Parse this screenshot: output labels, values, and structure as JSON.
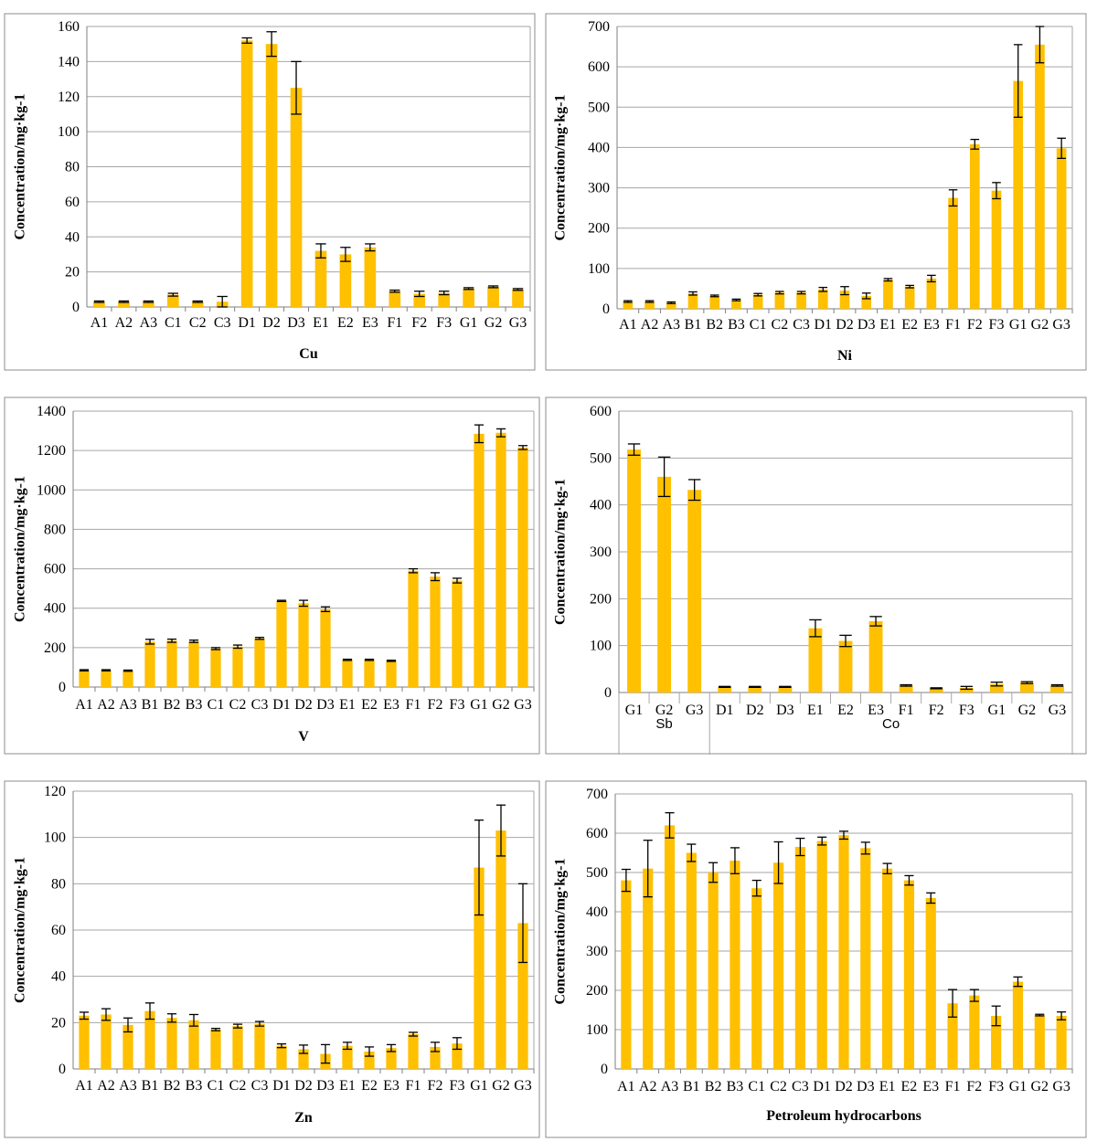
{
  "colors": {
    "bar": "#ffc000",
    "grid": "#a6a6a6",
    "axis": "#7f7f7f",
    "error": "#000000",
    "frame": "#8c8c8c"
  },
  "chart_data": [
    {
      "id": "cu",
      "type": "bar",
      "title": "Cu",
      "xlabel": "Cu",
      "ylabel": "Concentration/mg·kg-1",
      "ylim": [
        0,
        160
      ],
      "yticks": [
        0,
        20,
        40,
        60,
        80,
        100,
        120,
        140,
        160
      ],
      "categories": [
        "A1",
        "A2",
        "A3",
        "C1",
        "C2",
        "C3",
        "D1",
        "D2",
        "D3",
        "E1",
        "E2",
        "E3",
        "F1",
        "F2",
        "F3",
        "G1",
        "G2",
        "G3"
      ],
      "values": [
        3,
        3,
        3,
        7,
        3,
        3,
        152,
        150,
        125,
        32,
        30,
        34,
        9,
        7.5,
        8,
        10.5,
        11.5,
        10
      ],
      "errors": [
        0.4,
        0.4,
        0.4,
        0.8,
        0.4,
        3,
        1.5,
        7,
        15,
        4,
        4,
        2,
        0.6,
        1.5,
        1,
        0.5,
        0.5,
        0.5
      ]
    },
    {
      "id": "ni",
      "type": "bar",
      "title": "Ni",
      "xlabel": "Ni",
      "ylabel": "Concentration/mg·kg-1",
      "ylim": [
        0,
        700
      ],
      "yticks": [
        0,
        100,
        200,
        300,
        400,
        500,
        600,
        700
      ],
      "categories": [
        "A1",
        "A2",
        "A3",
        "B1",
        "B2",
        "B3",
        "C1",
        "C2",
        "C3",
        "D1",
        "D2",
        "D3",
        "E1",
        "E2",
        "E3",
        "F1",
        "F2",
        "F3",
        "G1",
        "G2",
        "G3"
      ],
      "values": [
        18,
        18,
        15,
        38,
        32,
        22,
        35,
        40,
        40,
        48,
        45,
        32,
        72,
        55,
        75,
        275,
        408,
        293,
        565,
        655,
        398
      ],
      "errors": [
        2,
        2,
        2,
        4,
        2,
        2,
        3,
        3,
        3,
        5,
        10,
        7,
        3,
        3,
        8,
        20,
        12,
        20,
        90,
        45,
        25
      ]
    },
    {
      "id": "v",
      "type": "bar",
      "title": "V",
      "xlabel": "V",
      "ylabel": "Concentration/mg·kg-1",
      "ylim": [
        0,
        1400
      ],
      "yticks": [
        0,
        200,
        400,
        600,
        800,
        1000,
        1200,
        1400
      ],
      "categories": [
        "A1",
        "A2",
        "A3",
        "B1",
        "B2",
        "B3",
        "C1",
        "C2",
        "C3",
        "D1",
        "D2",
        "D3",
        "E1",
        "E2",
        "E3",
        "F1",
        "F2",
        "F3",
        "G1",
        "G2",
        "G3"
      ],
      "values": [
        85,
        85,
        83,
        230,
        235,
        232,
        195,
        205,
        247,
        437,
        425,
        395,
        138,
        138,
        133,
        590,
        560,
        540,
        1285,
        1290,
        1215
      ],
      "errors": [
        3,
        3,
        3,
        12,
        8,
        6,
        5,
        8,
        5,
        3,
        15,
        12,
        3,
        3,
        3,
        10,
        20,
        12,
        45,
        20,
        10
      ]
    },
    {
      "id": "sbco",
      "type": "bar",
      "title": "Sb / Co",
      "xlabel": "",
      "ylabel": "Concentration/mg·kg-1",
      "ylim": [
        0,
        600
      ],
      "yticks": [
        0,
        100,
        200,
        300,
        400,
        500,
        600
      ],
      "categories": [
        "G1",
        "G2",
        "G3",
        "D1",
        "D2",
        "D3",
        "E1",
        "E2",
        "E3",
        "F1",
        "F2",
        "F3",
        "G1",
        "G2",
        "G3"
      ],
      "groups": [
        {
          "name": "Sb",
          "count": 3
        },
        {
          "name": "Co",
          "count": 12
        }
      ],
      "values": [
        518,
        460,
        432,
        12,
        12,
        12,
        137,
        110,
        152,
        15,
        9,
        10,
        18,
        21,
        15
      ],
      "errors": [
        12,
        42,
        22,
        1,
        1,
        1,
        18,
        12,
        10,
        1.5,
        1,
        3,
        4,
        2,
        1.5
      ]
    },
    {
      "id": "zn",
      "type": "bar",
      "title": "Zn",
      "xlabel": "Zn",
      "ylabel": "Concentration/mg·kg-1",
      "ylim": [
        0,
        120
      ],
      "yticks": [
        0,
        20,
        40,
        60,
        80,
        100,
        120
      ],
      "categories": [
        "A1",
        "A2",
        "A3",
        "B1",
        "B2",
        "B3",
        "C1",
        "C2",
        "C3",
        "D1",
        "D2",
        "D3",
        "E1",
        "E2",
        "E3",
        "F1",
        "F2",
        "F3",
        "G1",
        "G2",
        "G3"
      ],
      "values": [
        23,
        23.5,
        19,
        25,
        22,
        21,
        17,
        18.5,
        19.5,
        10,
        8.5,
        6.5,
        10,
        7.5,
        9,
        15,
        9.5,
        11,
        87,
        103,
        63
      ],
      "errors": [
        1.5,
        2.5,
        3,
        3.5,
        1.8,
        2.5,
        0.5,
        0.8,
        1,
        0.8,
        1.8,
        4,
        1.5,
        2,
        1.5,
        0.8,
        2,
        2.5,
        20.5,
        11,
        17
      ]
    },
    {
      "id": "ph",
      "type": "bar",
      "title": "Petroleum hydrocarbons",
      "xlabel": "Petroleum hydrocarbons",
      "ylabel": "Concentration/mg·kg-1",
      "ylim": [
        0,
        700
      ],
      "yticks": [
        0,
        100,
        200,
        300,
        400,
        500,
        600,
        700
      ],
      "categories": [
        "A1",
        "A2",
        "A3",
        "B1",
        "B2",
        "B3",
        "C1",
        "C2",
        "C3",
        "D1",
        "D2",
        "D3",
        "E1",
        "E2",
        "E3",
        "F1",
        "F2",
        "F3",
        "G1",
        "G2",
        "G3"
      ],
      "values": [
        480,
        510,
        620,
        550,
        500,
        530,
        460,
        525,
        565,
        580,
        595,
        562,
        510,
        480,
        435,
        167,
        187,
        135,
        222,
        137,
        135
      ],
      "errors": [
        28,
        72,
        32,
        22,
        25,
        33,
        20,
        53,
        22,
        10,
        10,
        15,
        13,
        12,
        13,
        35,
        15,
        25,
        12,
        2,
        10
      ]
    }
  ]
}
